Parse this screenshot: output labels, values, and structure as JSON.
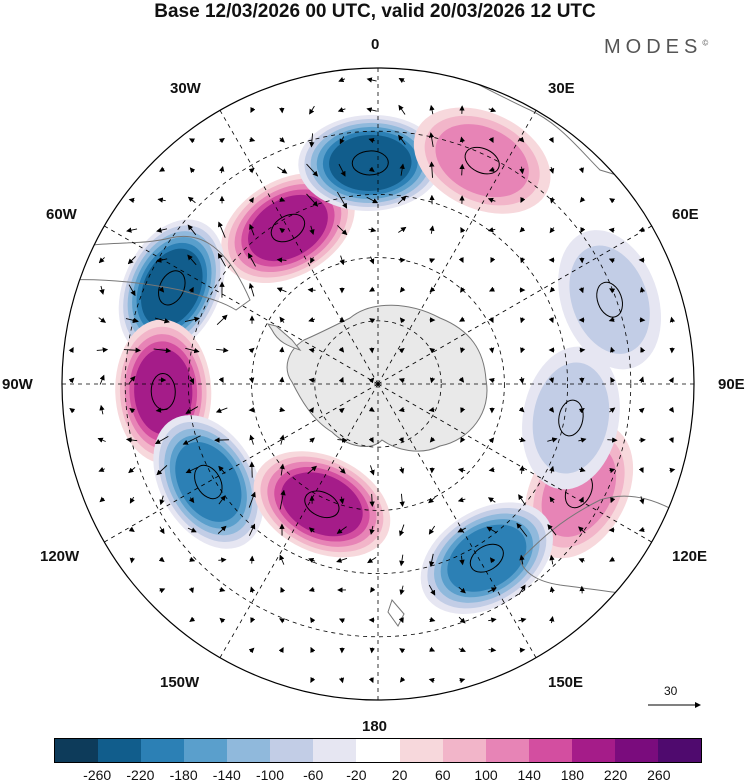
{
  "title": "Base 12/03/2026 00 UTC, valid 20/03/2026 12 UTC",
  "brand": {
    "name": "MODES",
    "mark": "©"
  },
  "longitude_labels": {
    "top": "0",
    "bottom": "180",
    "left": "90W",
    "right": "90E",
    "w30": "30W",
    "e30": "30E",
    "w60": "60W",
    "e60": "60E",
    "w120": "120W",
    "e120": "120E",
    "w150": "150W",
    "e150": "150E"
  },
  "vector_scale": {
    "label": "30"
  },
  "colorbar": {
    "colors": [
      "#0d3b5a",
      "#115d8c",
      "#2c80b5",
      "#5a9fcc",
      "#90b9dc",
      "#c2cde6",
      "#e6e6f2",
      "#ffffff",
      "#f7d8dc",
      "#f2b5c9",
      "#e784b6",
      "#d34ea0",
      "#a51c89",
      "#7a0c7d",
      "#4f0a6e"
    ],
    "ticks": [
      "-260",
      "-220",
      "-180",
      "-140",
      "-100",
      "-60",
      "-20",
      "20",
      "60",
      "100",
      "140",
      "180",
      "220",
      "260"
    ]
  },
  "anomaly_centers": [
    {
      "name": "high-south-atlantic",
      "lon": -30,
      "colat": 0.57,
      "value": 180
    },
    {
      "name": "low-near-greenwich",
      "lon": -2,
      "colat": 0.7,
      "value": -230
    },
    {
      "name": "high-africa",
      "lon": 25,
      "colat": 0.78,
      "value": 100
    },
    {
      "name": "low-argentina",
      "lon": -65,
      "colat": 0.72,
      "value": -240
    },
    {
      "name": "high-pacific-east",
      "lon": -92,
      "colat": 0.68,
      "value": 200
    },
    {
      "name": "low-pacific-south",
      "lon": -120,
      "colat": 0.62,
      "value": -200
    },
    {
      "name": "high-ross",
      "lon": -155,
      "colat": 0.42,
      "value": 210
    },
    {
      "name": "high-australia",
      "lon": 118,
      "colat": 0.72,
      "value": 130
    },
    {
      "name": "low-tasman",
      "lon": 148,
      "colat": 0.65,
      "value": -200
    },
    {
      "name": "low-indian",
      "lon": 70,
      "colat": 0.78,
      "value": -60
    },
    {
      "name": "low-east-indian",
      "lon": 100,
      "colat": 0.62,
      "value": -90
    }
  ]
}
